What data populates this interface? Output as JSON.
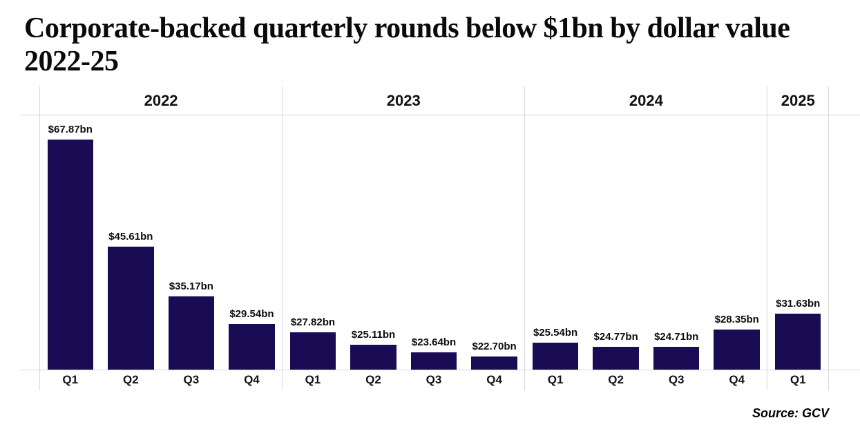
{
  "chart_data": {
    "type": "bar",
    "title": "Corporate-backed quarterly rounds below $1bn by dollar value 2022-25",
    "xlabel": "",
    "ylabel": "",
    "ylim": [
      20,
      73
    ],
    "grid": false,
    "legend_position": "none",
    "bar_color": "#1a0b55",
    "divider_color": "#d8d8d8",
    "groups": [
      {
        "year": "2022",
        "categories": [
          "Q1",
          "Q2",
          "Q3",
          "Q4"
        ],
        "values": [
          67.87,
          45.61,
          35.17,
          29.54
        ],
        "value_labels": [
          "$67.87bn",
          "$45.61bn",
          "$35.17bn",
          "$29.54bn"
        ]
      },
      {
        "year": "2023",
        "categories": [
          "Q1",
          "Q2",
          "Q3",
          "Q4"
        ],
        "values": [
          27.82,
          25.11,
          23.64,
          22.7
        ],
        "value_labels": [
          "$27.82bn",
          "$25.11bn",
          "$23.64bn",
          "$22.70bn"
        ]
      },
      {
        "year": "2024",
        "categories": [
          "Q1",
          "Q2",
          "Q3",
          "Q4"
        ],
        "values": [
          25.54,
          24.77,
          24.71,
          28.35
        ],
        "value_labels": [
          "$25.54bn",
          "$24.77bn",
          "$24.71bn",
          "$28.35bn"
        ]
      },
      {
        "year": "2025",
        "categories": [
          "Q1"
        ],
        "values": [
          31.63
        ],
        "value_labels": [
          "$31.63bn"
        ]
      }
    ],
    "source": "Source: GCV"
  }
}
